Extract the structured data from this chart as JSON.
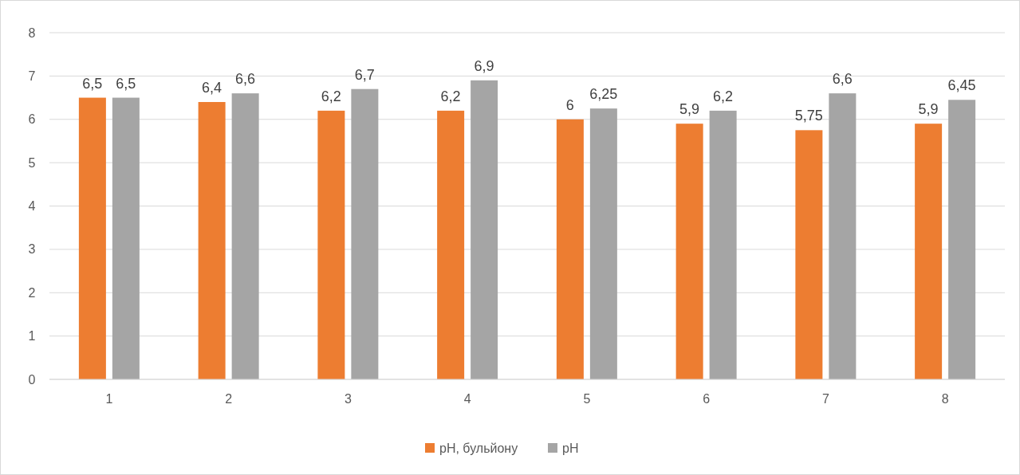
{
  "chart_data": {
    "type": "bar",
    "categories": [
      "1",
      "2",
      "3",
      "4",
      "5",
      "6",
      "7",
      "8"
    ],
    "series": [
      {
        "name": "pH, бульйону",
        "color": "#ed7d31",
        "values": [
          6.5,
          6.4,
          6.2,
          6.2,
          6,
          5.9,
          5.75,
          5.9
        ],
        "value_labels": [
          "6,5",
          "6,4",
          "6,2",
          "6,2",
          "6",
          "5,9",
          "5,75",
          "5,9"
        ]
      },
      {
        "name": "pH",
        "color": "#a5a5a5",
        "values": [
          6.5,
          6.6,
          6.7,
          6.9,
          6.25,
          6.2,
          6.6,
          6.45
        ],
        "value_labels": [
          "6,5",
          "6,6",
          "6,7",
          "6,9",
          "6,25",
          "6,2",
          "6,6",
          "6,45"
        ]
      }
    ],
    "ylim": [
      0,
      8
    ],
    "yticks": [
      0,
      1,
      2,
      3,
      4,
      5,
      6,
      7,
      8
    ],
    "grid": "y",
    "legend": "bottom"
  }
}
